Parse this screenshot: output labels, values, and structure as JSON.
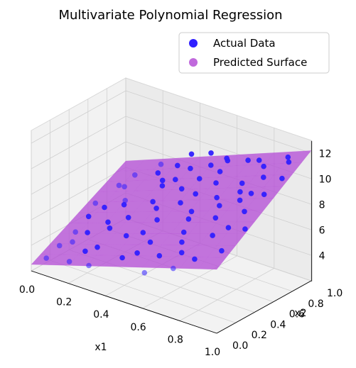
{
  "chart_data": {
    "type": "scatter",
    "projection": "3d",
    "title": "Multivariate Polynomial Regression",
    "xlabel": "x1",
    "ylabel": "x2",
    "zlabel": "",
    "xlim": [
      0.0,
      1.0
    ],
    "ylim": [
      0.0,
      1.0
    ],
    "zlim": [
      2,
      13
    ],
    "x_ticks": [
      "0.0",
      "0.2",
      "0.4",
      "0.6",
      "0.8",
      "1.0"
    ],
    "y_ticks": [
      "0.0",
      "0.2",
      "0.4",
      "0.6",
      "0.8",
      "1.0"
    ],
    "z_ticks": [
      "4",
      "6",
      "8",
      "10",
      "12"
    ],
    "grid": true,
    "legend_position": "top-right",
    "colors": {
      "actual": "#2f1fff",
      "surface": "#b54fd6"
    },
    "series": [
      {
        "name": "Actual Data",
        "kind": "scatter",
        "points": [
          {
            "x": 0.02,
            "y": 0.12,
            "z": 2.6
          },
          {
            "x": 0.05,
            "y": 0.2,
            "z": 3.4
          },
          {
            "x": 0.08,
            "y": 0.45,
            "z": 4.8
          },
          {
            "x": 0.12,
            "y": 0.75,
            "z": 6.1
          },
          {
            "x": 0.03,
            "y": 0.62,
            "z": 4.9
          },
          {
            "x": 0.15,
            "y": 0.3,
            "z": 4.5
          },
          {
            "x": 0.18,
            "y": 0.05,
            "z": 3.4
          },
          {
            "x": 0.22,
            "y": 0.55,
            "z": 6.0
          },
          {
            "x": 0.25,
            "y": 0.85,
            "z": 7.4
          },
          {
            "x": 0.28,
            "y": 0.15,
            "z": 4.6
          },
          {
            "x": 0.32,
            "y": 0.4,
            "z": 6.1
          },
          {
            "x": 0.35,
            "y": 0.7,
            "z": 7.5
          },
          {
            "x": 0.38,
            "y": 0.95,
            "z": 9.1
          },
          {
            "x": 0.4,
            "y": 0.22,
            "z": 5.8
          },
          {
            "x": 0.42,
            "y": 0.5,
            "z": 6.9
          },
          {
            "x": 0.45,
            "y": 0.08,
            "z": 4.9
          },
          {
            "x": 0.48,
            "y": 0.65,
            "z": 8.1
          },
          {
            "x": 0.5,
            "y": 0.35,
            "z": 7.0
          },
          {
            "x": 0.52,
            "y": 0.88,
            "z": 9.2
          },
          {
            "x": 0.55,
            "y": 0.18,
            "z": 6.2
          },
          {
            "x": 0.58,
            "y": 0.6,
            "z": 8.4
          },
          {
            "x": 0.6,
            "y": 0.02,
            "z": 4.7
          },
          {
            "x": 0.62,
            "y": 0.78,
            "z": 9.6
          },
          {
            "x": 0.65,
            "y": 0.42,
            "z": 8.1
          },
          {
            "x": 0.68,
            "y": 0.28,
            "z": 7.2
          },
          {
            "x": 0.7,
            "y": 0.92,
            "z": 10.3
          },
          {
            "x": 0.72,
            "y": 0.55,
            "z": 9.0
          },
          {
            "x": 0.75,
            "y": 0.12,
            "z": 6.6
          },
          {
            "x": 0.78,
            "y": 0.7,
            "z": 9.8
          },
          {
            "x": 0.8,
            "y": 0.38,
            "z": 8.5
          },
          {
            "x": 0.82,
            "y": 0.85,
            "z": 10.7
          },
          {
            "x": 0.85,
            "y": 0.25,
            "z": 7.9
          },
          {
            "x": 0.88,
            "y": 0.6,
            "z": 9.9
          },
          {
            "x": 0.9,
            "y": 0.95,
            "z": 11.4
          },
          {
            "x": 0.92,
            "y": 0.45,
            "z": 9.3
          },
          {
            "x": 0.95,
            "y": 0.15,
            "z": 7.6
          },
          {
            "x": 0.97,
            "y": 0.75,
            "z": 10.9
          },
          {
            "x": 0.99,
            "y": 0.32,
            "z": 8.8
          },
          {
            "x": 0.1,
            "y": 0.9,
            "z": 6.3
          },
          {
            "x": 0.2,
            "y": 0.98,
            "z": 7.3
          },
          {
            "x": 0.3,
            "y": 0.02,
            "z": 3.8
          },
          {
            "x": 0.44,
            "y": 0.82,
            "z": 8.8
          },
          {
            "x": 0.56,
            "y": 0.48,
            "z": 8.1
          },
          {
            "x": 0.66,
            "y": 0.66,
            "z": 9.4
          },
          {
            "x": 0.74,
            "y": 0.05,
            "z": 5.6
          },
          {
            "x": 0.86,
            "y": 0.52,
            "z": 9.6
          },
          {
            "x": 0.94,
            "y": 0.88,
            "z": 11.5
          },
          {
            "x": 0.06,
            "y": 0.35,
            "z": 3.9
          },
          {
            "x": 0.16,
            "y": 0.68,
            "z": 5.5
          },
          {
            "x": 0.26,
            "y": 0.32,
            "z": 5.3
          },
          {
            "x": 0.36,
            "y": 0.58,
            "z": 6.8
          },
          {
            "x": 0.46,
            "y": 0.28,
            "z": 6.1
          },
          {
            "x": 0.54,
            "y": 0.72,
            "z": 8.9
          },
          {
            "x": 0.64,
            "y": 0.1,
            "z": 5.9
          },
          {
            "x": 0.76,
            "y": 0.92,
            "z": 10.6
          },
          {
            "x": 0.84,
            "y": 0.08,
            "z": 6.7
          },
          {
            "x": 0.96,
            "y": 0.58,
            "z": 10.3
          },
          {
            "x": 0.34,
            "y": 0.88,
            "z": 8.3
          },
          {
            "x": 0.24,
            "y": 0.1,
            "z": 4.3
          },
          {
            "x": 0.14,
            "y": 0.5,
            "z": 5.6
          },
          {
            "x": 0.04,
            "y": 0.85,
            "z": 5.4
          },
          {
            "x": 0.57,
            "y": 0.95,
            "z": 9.7
          },
          {
            "x": 0.67,
            "y": 0.35,
            "z": 7.9
          },
          {
            "x": 0.77,
            "y": 0.48,
            "z": 8.9
          },
          {
            "x": 0.87,
            "y": 0.75,
            "z": 10.5
          },
          {
            "x": 0.41,
            "y": 0.72,
            "z": 8.2
          },
          {
            "x": 0.31,
            "y": 0.78,
            "z": 7.4
          },
          {
            "x": 0.21,
            "y": 0.4,
            "z": 5.2
          },
          {
            "x": 0.11,
            "y": 0.22,
            "z": 3.9
          },
          {
            "x": 0.51,
            "y": 0.12,
            "z": 5.4
          },
          {
            "x": 0.61,
            "y": 0.88,
            "z": 10.0
          },
          {
            "x": 0.71,
            "y": 0.2,
            "z": 6.9
          },
          {
            "x": 0.81,
            "y": 0.62,
            "z": 9.6
          },
          {
            "x": 0.91,
            "y": 0.3,
            "z": 8.6
          },
          {
            "x": 0.47,
            "y": 0.98,
            "z": 9.5
          }
        ]
      },
      {
        "name": "Predicted Surface",
        "kind": "surface",
        "model": "z = 2.5 + 4.5*x1 + 4.0*x2 + 1.2*x1*x2"
      }
    ]
  }
}
